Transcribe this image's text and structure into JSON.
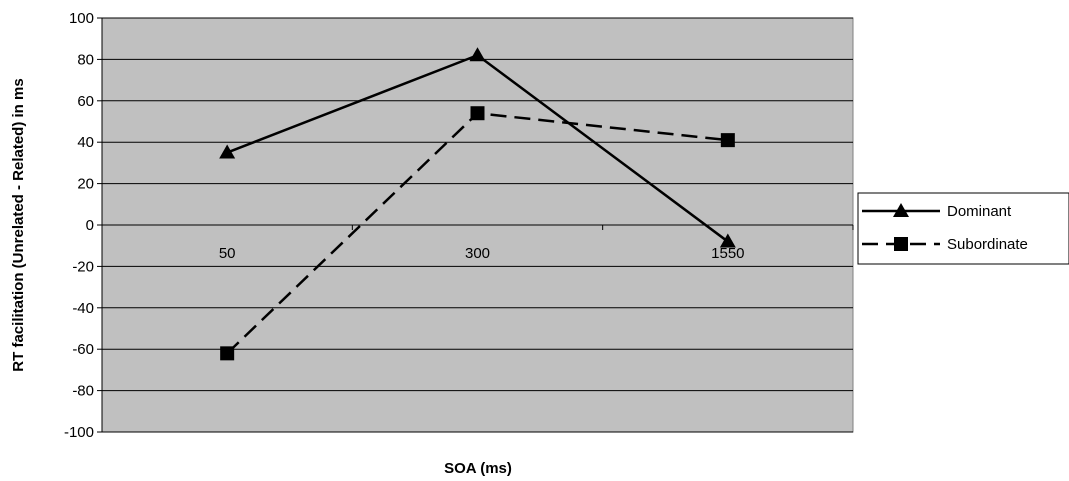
{
  "chart_data": {
    "type": "line",
    "categories": [
      "50",
      "300",
      "1550"
    ],
    "series": [
      {
        "name": "Dominant",
        "values": [
          35,
          82,
          -8
        ],
        "color": "#000000",
        "dash": "solid",
        "marker": "triangle"
      },
      {
        "name": "Subordinate",
        "values": [
          -62,
          54,
          41
        ],
        "color": "#000000",
        "dash": "dashed",
        "marker": "square"
      }
    ],
    "xlabel": "SOA (ms)",
    "ylabel": "RT facilitation (Unrelated - Related) in ms",
    "ylim": [
      -100,
      100
    ],
    "yticks": [
      100,
      80,
      60,
      40,
      20,
      0,
      -20,
      -40,
      -60,
      -80,
      -100
    ],
    "grid": true,
    "plot_background": "#c0c0c0",
    "legend_position": "right"
  }
}
